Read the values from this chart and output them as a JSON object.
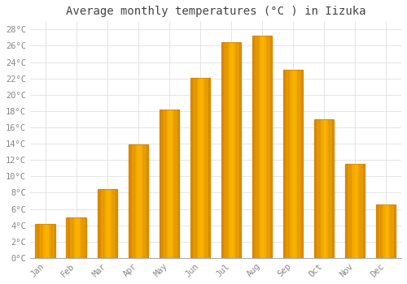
{
  "title": "Average monthly temperatures (°C ) in Iizuka",
  "months": [
    "Jan",
    "Feb",
    "Mar",
    "Apr",
    "May",
    "Jun",
    "Jul",
    "Aug",
    "Sep",
    "Oct",
    "Nov",
    "Dec"
  ],
  "values": [
    4.2,
    5.0,
    8.4,
    13.9,
    18.2,
    22.1,
    26.4,
    27.2,
    23.1,
    17.0,
    11.5,
    6.6
  ],
  "bar_color_main": "#FFBB00",
  "bar_color_edge": "#E8960A",
  "background_color": "#ffffff",
  "grid_color": "#e0e0e0",
  "text_color": "#888888",
  "ylim": [
    0,
    29
  ],
  "yticks": [
    0,
    2,
    4,
    6,
    8,
    10,
    12,
    14,
    16,
    18,
    20,
    22,
    24,
    26,
    28
  ],
  "title_fontsize": 10,
  "tick_fontsize": 7.5,
  "font_family": "monospace"
}
